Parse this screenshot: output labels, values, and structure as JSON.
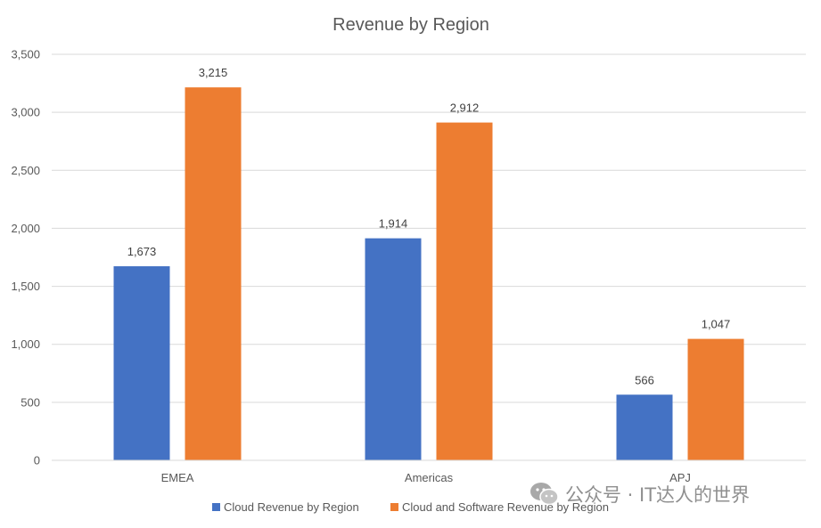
{
  "chart_data": {
    "type": "bar",
    "title": "Revenue by Region",
    "categories": [
      "EMEA",
      "Americas",
      "APJ"
    ],
    "series": [
      {
        "name": "Cloud Revenue by Region",
        "color": "#4472C4",
        "values": [
          1673,
          1914,
          566
        ]
      },
      {
        "name": "Cloud and Software Revenue by Region",
        "color": "#ED7D31",
        "values": [
          3215,
          2912,
          1047
        ]
      }
    ],
    "ylim": [
      0,
      3500
    ],
    "yticks": [
      0,
      500,
      1000,
      1500,
      2000,
      2500,
      3000,
      3500
    ],
    "grid": true,
    "xlabel": "",
    "ylabel": "",
    "legend_position": "bottom"
  },
  "watermark": {
    "text": "公众号 · IT达人的世界",
    "icon": "wechat-icon"
  }
}
